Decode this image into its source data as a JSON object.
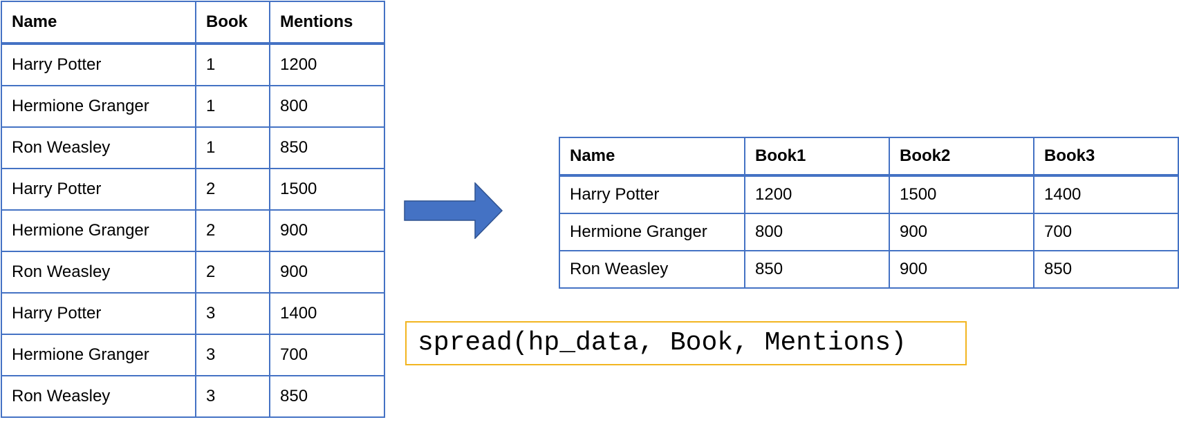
{
  "long_table": {
    "headers": [
      "Name",
      "Book",
      "Mentions"
    ],
    "rows": [
      [
        "Harry Potter",
        "1",
        "1200"
      ],
      [
        "Hermione Granger",
        "1",
        "800"
      ],
      [
        "Ron Weasley",
        "1",
        "850"
      ],
      [
        "Harry Potter",
        "2",
        "1500"
      ],
      [
        "Hermione Granger",
        "2",
        "900"
      ],
      [
        "Ron Weasley",
        "2",
        "900"
      ],
      [
        "Harry Potter",
        "3",
        "1400"
      ],
      [
        "Hermione Granger",
        "3",
        "700"
      ],
      [
        "Ron Weasley",
        "3",
        "850"
      ]
    ]
  },
  "wide_table": {
    "headers": [
      "Name",
      "Book1",
      "Book2",
      "Book3"
    ],
    "rows": [
      [
        "Harry Potter",
        "1200",
        "1500",
        "1400"
      ],
      [
        "Hermione Granger",
        "800",
        "900",
        "700"
      ],
      [
        "Ron Weasley",
        "850",
        "900",
        "850"
      ]
    ]
  },
  "arrow": {
    "icon": "right-arrow-icon",
    "color": "#4472c4"
  },
  "code": {
    "text": "spread(hp_data, Book, Mentions)",
    "border_color": "#f2b520"
  },
  "table_border_color": "#4472c4"
}
